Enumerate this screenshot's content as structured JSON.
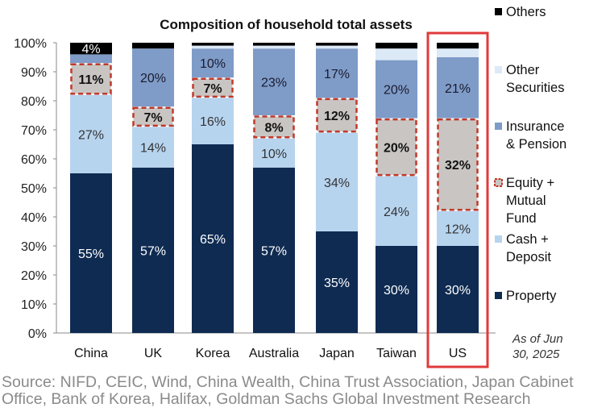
{
  "chart_data": {
    "type": "bar",
    "stacked": true,
    "title": "Composition of household total assets",
    "categories": [
      "China",
      "UK",
      "Korea",
      "Australia",
      "Japan",
      "Taiwan",
      "US"
    ],
    "yticks": [
      "0%",
      "10%",
      "20%",
      "30%",
      "40%",
      "50%",
      "60%",
      "70%",
      "80%",
      "90%",
      "100%"
    ],
    "ylim": [
      0,
      100
    ],
    "legend_position": "right",
    "series": [
      {
        "name": "Property",
        "color": "#0f2b52",
        "label_color": "#ffffff",
        "values": [
          55,
          57,
          65,
          57,
          35,
          30,
          30
        ],
        "labels": [
          "55%",
          "57%",
          "65%",
          "57%",
          "35%",
          "30%",
          "30%"
        ]
      },
      {
        "name": "Cash + Deposit",
        "color": "#b7d4ef",
        "label_color": "#333333",
        "values": [
          27,
          14,
          16,
          10,
          34,
          24,
          12
        ],
        "labels": [
          "27%",
          "14%",
          "16%",
          "10%",
          "34%",
          "24%",
          "12%"
        ]
      },
      {
        "name": "Equity + Mutual Fund",
        "color": "#c9c5c3",
        "label_color": "#111111",
        "dashed_border": "#c0392b",
        "values": [
          11,
          7,
          7,
          8,
          12,
          20,
          32
        ],
        "labels": [
          "11%",
          "7%",
          "7%",
          "8%",
          "12%",
          "20%",
          "32%"
        ]
      },
      {
        "name": "Insurance & Pension",
        "color": "#7f9cc8",
        "label_color": "#1a1a2e",
        "values": [
          3,
          20,
          10,
          23,
          17,
          20,
          21
        ],
        "labels": [
          null,
          "20%",
          "10%",
          "23%",
          "17%",
          "20%",
          "21%"
        ]
      },
      {
        "name": "Other Securities",
        "color": "#dce9f6",
        "label_color": "#333333",
        "values": [
          0,
          0,
          1,
          1,
          1,
          4,
          3
        ],
        "labels": [
          null,
          null,
          null,
          null,
          null,
          null,
          null
        ]
      },
      {
        "name": "Others",
        "color": "#000000",
        "label_color": "#ffffff",
        "values": [
          4,
          2,
          1,
          1,
          1,
          2,
          2
        ],
        "labels": [
          "4%",
          null,
          null,
          null,
          null,
          null,
          null
        ]
      }
    ],
    "highlight_category": "US",
    "highlight_color": "#e03a3a",
    "legend": [
      {
        "line1": "Others",
        "line2": "",
        "line3": ""
      },
      {
        "line1": "Other",
        "line2": "Securities",
        "line3": ""
      },
      {
        "line1": "Insurance",
        "line2": "& Pension",
        "line3": ""
      },
      {
        "line1": "Equity +",
        "line2": "Mutual",
        "line3": "Fund"
      },
      {
        "line1": "Cash +",
        "line2": "Deposit",
        "line3": ""
      },
      {
        "line1": "Property",
        "line2": "",
        "line3": ""
      }
    ],
    "note_line1": "As of Jun",
    "note_line2": "30, 2025"
  },
  "source": "Source: NIFD, CEIC, Wind, China Wealth, China Trust Association, Japan Cabinet Office, Bank of Korea, Halifax, Goldman Sachs Global Investment Research"
}
